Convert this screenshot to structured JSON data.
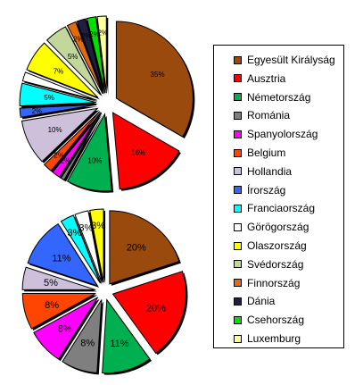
{
  "chart_data": [
    {
      "type": "pie",
      "exploded": true,
      "categories": [
        "Egyesült Királyság",
        "Ausztria",
        "Németország",
        "Románia",
        "Spanyolország",
        "Belgium",
        "Hollandia",
        "Írország",
        "Franciaország",
        "Görögország",
        "Olaszország",
        "Svédország",
        "Finnország",
        "Dánia",
        "Csehország",
        "Luxemburg"
      ],
      "values": [
        35,
        16,
        10,
        1,
        2,
        2,
        10,
        2,
        5,
        2,
        7,
        5,
        2,
        2,
        2,
        2
      ],
      "labels": [
        "35%",
        "16%",
        "10%",
        "",
        "2%",
        "2%",
        "10%",
        "2%",
        "5%",
        "",
        "7%",
        "5%",
        "2%",
        "2%",
        "2%",
        "2%"
      ],
      "start_angle": 0
    },
    {
      "type": "pie",
      "exploded": true,
      "categories": [
        "Egyesült Királyság",
        "Ausztria",
        "Németország",
        "Románia",
        "Spanyolország",
        "Belgium",
        "Hollandia",
        "Írország",
        "Franciaország",
        "Görögország",
        "Olaszország",
        "Svédország",
        "Finnország",
        "Dánia",
        "Csehország",
        "Luxemburg"
      ],
      "values": [
        20,
        20,
        11,
        8,
        8,
        8,
        5,
        11,
        3,
        3,
        3,
        0,
        0,
        0,
        0,
        0
      ],
      "labels": [
        "20%",
        "20%",
        "11%",
        "8%",
        "8%",
        "8%",
        "5%",
        "11%",
        "3%",
        "3%",
        "3%",
        "",
        "",
        "",
        "",
        ""
      ],
      "start_angle": 0
    }
  ],
  "legend": {
    "items": [
      {
        "label": "Egyesült Királyság",
        "color": "#9B4A0D"
      },
      {
        "label": "Ausztria",
        "color": "#FF0000"
      },
      {
        "label": "Németország",
        "color": "#00B050"
      },
      {
        "label": "Románia",
        "color": "#7F7F7F"
      },
      {
        "label": "Spanyolország",
        "color": "#FF00FF"
      },
      {
        "label": "Belgium",
        "color": "#FF4500"
      },
      {
        "label": "Hollandia",
        "color": "#CCC0DA"
      },
      {
        "label": "Írország",
        "color": "#3366FF"
      },
      {
        "label": "Franciaország",
        "color": "#00FFFF"
      },
      {
        "label": "Görögország",
        "color": "#FFFFFF"
      },
      {
        "label": "Olaszország",
        "color": "#FFFF00"
      },
      {
        "label": "Svédország",
        "color": "#C4D79B"
      },
      {
        "label": "Finnország",
        "color": "#E26B0A"
      },
      {
        "label": "Dánia",
        "color": "#1F1F3F"
      },
      {
        "label": "Csehország",
        "color": "#00E000"
      },
      {
        "label": "Luxemburg",
        "color": "#FFFF99"
      }
    ]
  }
}
